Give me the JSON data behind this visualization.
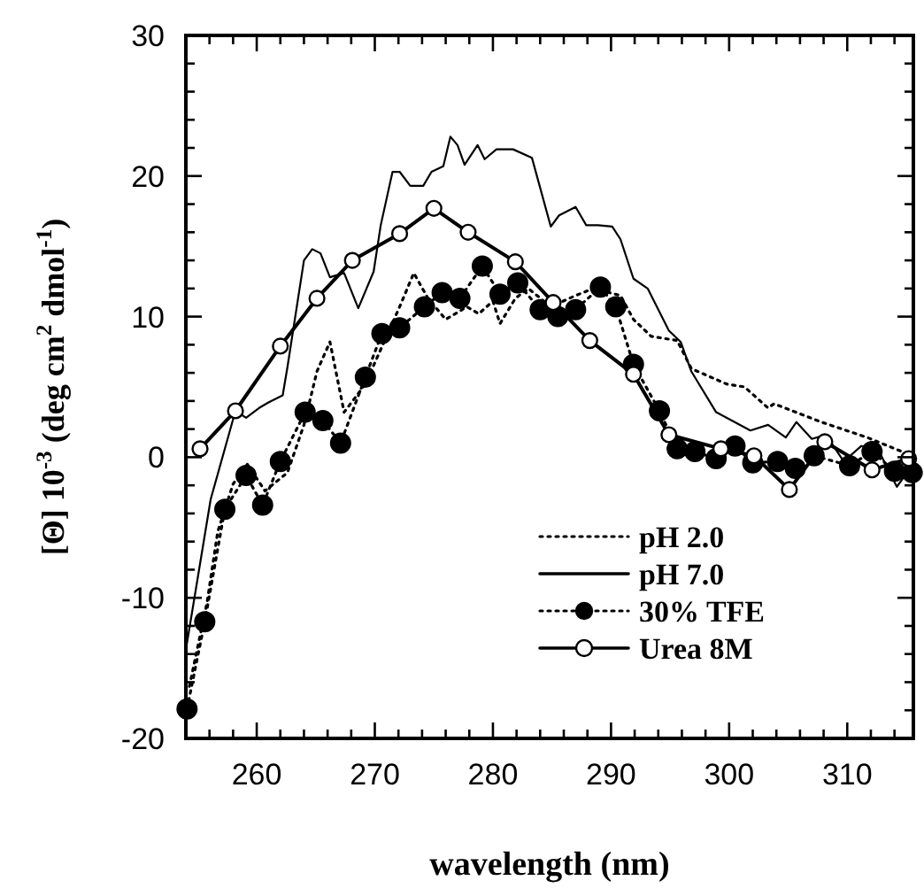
{
  "chart_data": {
    "type": "line",
    "xlabel": "wavelength (nm)",
    "ylabel": "[Θ] 10$^{-3}$ (deg cm$^{2}$ dmol$^{-1}$)",
    "xlim": [
      254,
      315.6
    ],
    "ylim": [
      -20,
      30
    ],
    "xticks": [
      {
        "value": 256,
        "label": null
      },
      {
        "value": 258,
        "label": null
      },
      260,
      {
        "value": 262,
        "label": null
      },
      {
        "value": 264,
        "label": null
      },
      {
        "value": 266,
        "label": null
      },
      {
        "value": 268,
        "label": null
      },
      270,
      {
        "value": 272,
        "label": null
      },
      {
        "value": 274,
        "label": null
      },
      {
        "value": 276,
        "label": null
      },
      {
        "value": 278,
        "label": null
      },
      280,
      {
        "value": 282,
        "label": null
      },
      {
        "value": 284,
        "label": null
      },
      {
        "value": 286,
        "label": null
      },
      {
        "value": 288,
        "label": null
      },
      290,
      {
        "value": 292,
        "label": null
      },
      {
        "value": 294,
        "label": null
      },
      {
        "value": 296,
        "label": null
      },
      {
        "value": 298,
        "label": null
      },
      300,
      {
        "value": 302,
        "label": null
      },
      {
        "value": 304,
        "label": null
      },
      {
        "value": 306,
        "label": null
      },
      {
        "value": 308,
        "label": null
      },
      310,
      {
        "value": 312,
        "label": null
      },
      {
        "value": 314,
        "label": null
      }
    ],
    "yticks": [
      -20,
      {
        "value": -18,
        "label": null
      },
      {
        "value": -16,
        "label": null
      },
      {
        "value": -14,
        "label": null
      },
      {
        "value": -12,
        "label": null
      },
      -10,
      {
        "value": -8,
        "label": null
      },
      {
        "value": -6,
        "label": null
      },
      {
        "value": -4,
        "label": null
      },
      {
        "value": -2,
        "label": null
      },
      0,
      {
        "value": 2,
        "label": null
      },
      {
        "value": 4,
        "label": null
      },
      {
        "value": 6,
        "label": null
      },
      {
        "value": 8,
        "label": null
      },
      10,
      {
        "value": 12,
        "label": null
      },
      {
        "value": 14,
        "label": null
      },
      {
        "value": 16,
        "label": null
      },
      {
        "value": 18,
        "label": null
      },
      20,
      {
        "value": 22,
        "label": null
      },
      {
        "value": 24,
        "label": null
      },
      {
        "value": 26,
        "label": null
      },
      {
        "value": 28,
        "label": null
      },
      30
    ],
    "legend": "bottom right",
    "series": [
      {
        "name": "pH 2.0",
        "color": "#000000",
        "marker": "none",
        "line_style": "dotted",
        "x": [
          254.3,
          255.8,
          256.7,
          258,
          259.2,
          260.7,
          262.6,
          264,
          265.1,
          266.2,
          267.4,
          269.2,
          272.1,
          273.3,
          274.5,
          276,
          277.8,
          278.8,
          280,
          280.6,
          281.9,
          283,
          284.9,
          287,
          288.5,
          290.8,
          291.9,
          293.4,
          295.6,
          296.8,
          299.8,
          301.3,
          303.3,
          303.8,
          307.8,
          311.7,
          315.5
        ],
        "values": [
          -16.3,
          -10.3,
          -5.3,
          -1.9,
          -0.5,
          -2.4,
          -1.1,
          2.3,
          6.1,
          8.2,
          3.2,
          5.2,
          10.7,
          13.1,
          11.3,
          9.8,
          10.7,
          10.2,
          11.1,
          9.5,
          11.3,
          12,
          10.7,
          11.5,
          12,
          11.5,
          9.8,
          8.6,
          8.3,
          6.3,
          5.2,
          5,
          3.5,
          3.8,
          2.5,
          1.4,
          0.1
        ]
      },
      {
        "name": "pH 7.0",
        "color": "#000000",
        "marker": "none",
        "line_style": "solid",
        "x": [
          254,
          256.1,
          258.2,
          259.1,
          260.2,
          261,
          262.2,
          262.6,
          264,
          264.7,
          265.4,
          266.2,
          267.4,
          268.6,
          269.9,
          270.5,
          271.5,
          272.1,
          273,
          274.1,
          274.8,
          275.8,
          276.4,
          277,
          277.6,
          278.7,
          279.3,
          280.3,
          281.7,
          283.3,
          284.9,
          285.6,
          287,
          287.9,
          288.9,
          290.1,
          290.8,
          291.9,
          293.1,
          294.9,
          295.9,
          296.8,
          298.9,
          301.8,
          303.3,
          304.8,
          305.7,
          307,
          308.2,
          309.7,
          311.2,
          312.7,
          314.2,
          315.5
        ],
        "values": [
          -13.7,
          -3,
          3.3,
          2.8,
          3.5,
          3.9,
          4.4,
          6.4,
          14,
          14.8,
          14.5,
          12.8,
          13.1,
          10.6,
          13.2,
          16.5,
          20.3,
          20.3,
          19.3,
          19.3,
          20.3,
          20.7,
          22.8,
          22.2,
          20.8,
          22.2,
          21.2,
          21.9,
          21.9,
          21.3,
          16.4,
          17.2,
          17.8,
          16.5,
          16.5,
          16.4,
          15.5,
          12.7,
          12,
          9,
          8.2,
          6.1,
          3.2,
          1.9,
          2.3,
          1.4,
          2.5,
          1.3,
          1.6,
          -0.3,
          0.8,
          0.4,
          -2.1,
          -0.6
        ]
      },
      {
        "name": "30% TFE",
        "color": "#000000",
        "marker": "circle",
        "line_style": "dotted",
        "x": [
          254.1,
          255.6,
          257.3,
          259.1,
          260.5,
          262,
          264.1,
          265.6,
          267.1,
          269.2,
          270.6,
          272.1,
          274.2,
          275.7,
          277.2,
          279.1,
          280.6,
          282.1,
          284,
          285.5,
          287,
          289.1,
          290.4,
          291.9,
          294.1,
          295.6,
          297.1,
          298.9,
          300.5,
          302,
          304.1,
          305.6,
          307.2,
          310.2,
          312.1,
          314,
          315.5
        ],
        "values": [
          -17.9,
          -11.7,
          -3.7,
          -1.3,
          -3.4,
          -0.3,
          3.2,
          2.6,
          1,
          5.7,
          8.8,
          9.2,
          10.7,
          11.7,
          11.3,
          13.6,
          11.6,
          12.4,
          10.5,
          10,
          10.5,
          12.1,
          10.7,
          6.6,
          3.3,
          0.6,
          0.4,
          -0.1,
          0.8,
          -0.4,
          -0.3,
          -0.8,
          0.1,
          -0.6,
          0.4,
          -1,
          -1.1
        ]
      },
      {
        "name": "Urea 8M",
        "color": "#000000",
        "marker": "circle",
        "line_style": "solid",
        "x": [
          255.2,
          258.2,
          262,
          265.1,
          268.1,
          272.1,
          275,
          277.9,
          281.9,
          285.1,
          288.2,
          291.9,
          294.9,
          299.3,
          302.1,
          305.1,
          308.1,
          312.1,
          315.2
        ],
        "values": [
          0.6,
          3.3,
          7.9,
          11.3,
          14,
          15.9,
          17.7,
          16,
          13.9,
          11,
          8.3,
          5.9,
          1.6,
          0.6,
          0.1,
          -2.3,
          1.1,
          -0.9,
          -0.1
        ]
      }
    ]
  }
}
